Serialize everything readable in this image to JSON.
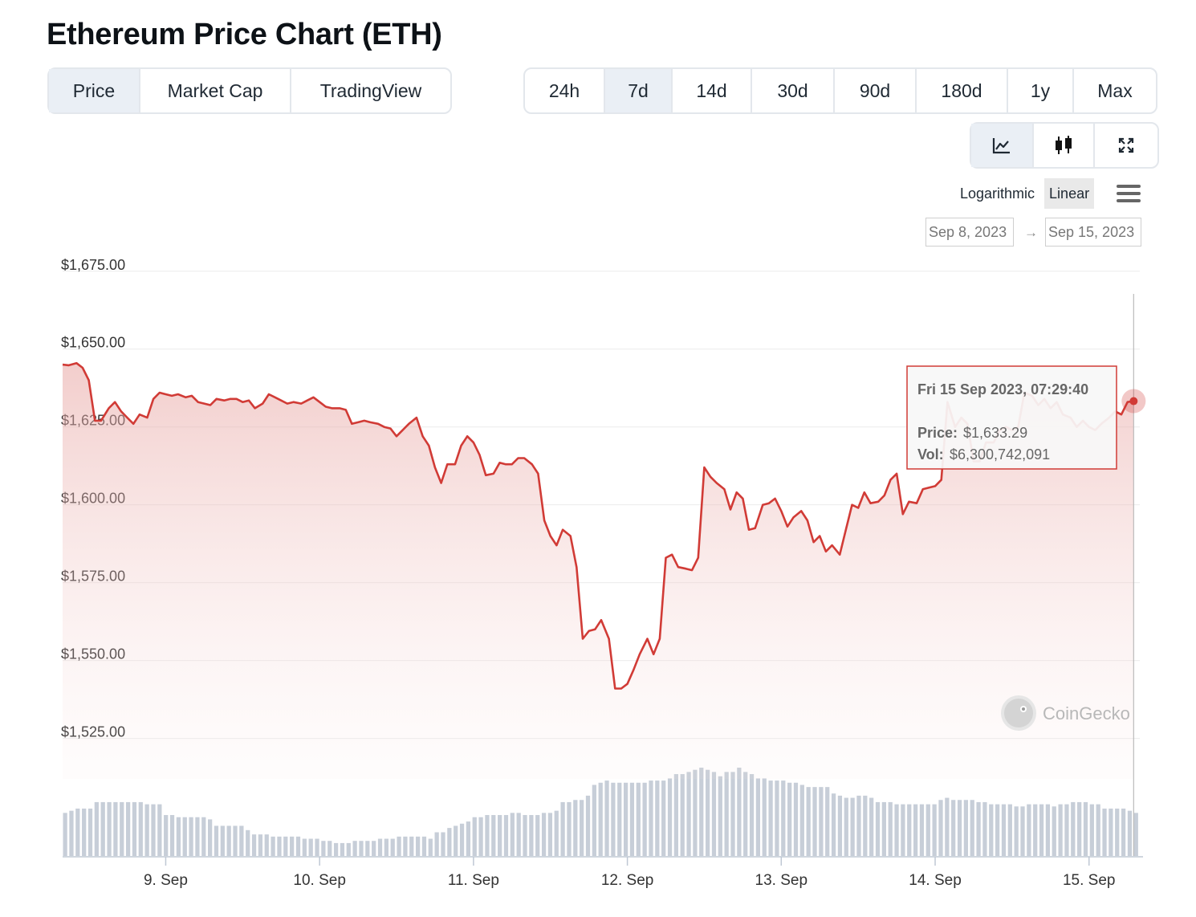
{
  "title": "Ethereum Price Chart (ETH)",
  "view_tabs": [
    {
      "label": "Price",
      "active": true
    },
    {
      "label": "Market Cap",
      "active": false
    },
    {
      "label": "TradingView",
      "active": false
    }
  ],
  "range_tabs": [
    {
      "label": "24h",
      "active": false
    },
    {
      "label": "7d",
      "active": true
    },
    {
      "label": "14d",
      "active": false
    },
    {
      "label": "30d",
      "active": false
    },
    {
      "label": "90d",
      "active": false
    },
    {
      "label": "180d",
      "active": false
    },
    {
      "label": "1y",
      "active": false
    },
    {
      "label": "Max",
      "active": false
    }
  ],
  "chart_type_tabs": [
    {
      "icon": "line-chart-icon",
      "active": true
    },
    {
      "icon": "candlestick-icon",
      "active": false
    },
    {
      "icon": "fullscreen-icon",
      "active": false
    }
  ],
  "scale_options": [
    {
      "label": "Logarithmic",
      "active": false
    },
    {
      "label": "Linear",
      "active": true
    }
  ],
  "date_range": {
    "from": "Sep 8, 2023",
    "arrow": "→",
    "to": "Sep 15, 2023"
  },
  "colors": {
    "line": "#d13b36",
    "volume": "#c7ced8",
    "active_tab": "#eaeff5",
    "border": "#e3e7ec"
  },
  "tooltip": {
    "datetime": "Fri 15 Sep 2023, 07:29:40",
    "price_label": "Price:",
    "price_value": "$1,633.29",
    "vol_label": "Vol:",
    "vol_value": "$6,300,742,091"
  },
  "watermark": "CoinGecko",
  "chart_data": {
    "type": "area",
    "title": "",
    "xlabel": "",
    "ylabel": "",
    "ylim": [
      1512,
      1677
    ],
    "y_ticks": [
      {
        "value": 1525,
        "label": "$1,525.00"
      },
      {
        "value": 1550,
        "label": "$1,550.00"
      },
      {
        "value": 1575,
        "label": "$1,575.00"
      },
      {
        "value": 1600,
        "label": "$1,600.00"
      },
      {
        "value": 1625,
        "label": "$1,625.00"
      },
      {
        "value": 1650,
        "label": "$1,650.00"
      },
      {
        "value": 1675,
        "label": "$1,675.00"
      }
    ],
    "x_range": [
      8.33,
      15.33
    ],
    "x_ticks": [
      {
        "value": 9,
        "label": "9. Sep"
      },
      {
        "value": 10,
        "label": "10. Sep"
      },
      {
        "value": 11,
        "label": "11. Sep"
      },
      {
        "value": 12,
        "label": "12. Sep"
      },
      {
        "value": 13,
        "label": "13. Sep"
      },
      {
        "value": 14,
        "label": "14. Sep"
      },
      {
        "value": 15,
        "label": "15. Sep"
      }
    ],
    "grid": true,
    "price_series": [
      [
        8.33,
        1645
      ],
      [
        8.37,
        1644.8
      ],
      [
        8.42,
        1645.5
      ],
      [
        8.46,
        1644
      ],
      [
        8.5,
        1640
      ],
      [
        8.54,
        1627
      ],
      [
        8.58,
        1627
      ],
      [
        8.63,
        1631
      ],
      [
        8.67,
        1633
      ],
      [
        8.71,
        1630
      ],
      [
        8.75,
        1628
      ],
      [
        8.79,
        1626
      ],
      [
        8.83,
        1629
      ],
      [
        8.88,
        1628
      ],
      [
        8.92,
        1634
      ],
      [
        8.96,
        1636
      ],
      [
        9.0,
        1635.5
      ],
      [
        9.04,
        1635
      ],
      [
        9.08,
        1635.5
      ],
      [
        9.13,
        1634.5
      ],
      [
        9.17,
        1635
      ],
      [
        9.21,
        1633
      ],
      [
        9.25,
        1632.5
      ],
      [
        9.29,
        1632
      ],
      [
        9.33,
        1634
      ],
      [
        9.38,
        1633.5
      ],
      [
        9.42,
        1634
      ],
      [
        9.46,
        1634
      ],
      [
        9.5,
        1633
      ],
      [
        9.54,
        1633.5
      ],
      [
        9.58,
        1631
      ],
      [
        9.63,
        1632.5
      ],
      [
        9.67,
        1635.5
      ],
      [
        9.71,
        1634.5
      ],
      [
        9.75,
        1633.5
      ],
      [
        9.79,
        1632.5
      ],
      [
        9.83,
        1633
      ],
      [
        9.88,
        1632.5
      ],
      [
        9.92,
        1633.5
      ],
      [
        9.96,
        1634.5
      ],
      [
        10.0,
        1633
      ],
      [
        10.04,
        1631.5
      ],
      [
        10.08,
        1631
      ],
      [
        10.13,
        1631
      ],
      [
        10.17,
        1630.5
      ],
      [
        10.21,
        1626
      ],
      [
        10.25,
        1626.5
      ],
      [
        10.29,
        1627
      ],
      [
        10.33,
        1626.5
      ],
      [
        10.38,
        1626
      ],
      [
        10.42,
        1625
      ],
      [
        10.46,
        1624.5
      ],
      [
        10.5,
        1622
      ],
      [
        10.54,
        1624
      ],
      [
        10.58,
        1626
      ],
      [
        10.63,
        1628
      ],
      [
        10.67,
        1622
      ],
      [
        10.71,
        1619
      ],
      [
        10.75,
        1612
      ],
      [
        10.79,
        1607
      ],
      [
        10.83,
        1613
      ],
      [
        10.88,
        1613
      ],
      [
        10.92,
        1619
      ],
      [
        10.96,
        1622
      ],
      [
        11.0,
        1620
      ],
      [
        11.04,
        1616
      ],
      [
        11.08,
        1609.5
      ],
      [
        11.13,
        1610
      ],
      [
        11.17,
        1613.5
      ],
      [
        11.21,
        1613
      ],
      [
        11.25,
        1613
      ],
      [
        11.29,
        1615
      ],
      [
        11.33,
        1615
      ],
      [
        11.38,
        1613
      ],
      [
        11.42,
        1610
      ],
      [
        11.46,
        1595
      ],
      [
        11.5,
        1590
      ],
      [
        11.54,
        1587
      ],
      [
        11.58,
        1592
      ],
      [
        11.63,
        1590
      ],
      [
        11.67,
        1580
      ],
      [
        11.71,
        1557
      ],
      [
        11.75,
        1559.5
      ],
      [
        11.79,
        1560
      ],
      [
        11.83,
        1563
      ],
      [
        11.88,
        1557
      ],
      [
        11.92,
        1541
      ],
      [
        11.96,
        1541
      ],
      [
        12.0,
        1542.5
      ],
      [
        12.04,
        1547
      ],
      [
        12.08,
        1552
      ],
      [
        12.13,
        1557
      ],
      [
        12.17,
        1552
      ],
      [
        12.21,
        1557
      ],
      [
        12.25,
        1583
      ],
      [
        12.29,
        1584
      ],
      [
        12.33,
        1580
      ],
      [
        12.38,
        1579.5
      ],
      [
        12.42,
        1579
      ],
      [
        12.46,
        1583
      ],
      [
        12.5,
        1612
      ],
      [
        12.54,
        1609
      ],
      [
        12.58,
        1607
      ],
      [
        12.63,
        1605
      ],
      [
        12.67,
        1598.5
      ],
      [
        12.71,
        1604
      ],
      [
        12.75,
        1602
      ],
      [
        12.79,
        1592
      ],
      [
        12.83,
        1592.5
      ],
      [
        12.88,
        1600
      ],
      [
        12.92,
        1600.5
      ],
      [
        12.96,
        1602
      ],
      [
        13.0,
        1598
      ],
      [
        13.04,
        1593
      ],
      [
        13.08,
        1596
      ],
      [
        13.13,
        1598
      ],
      [
        13.17,
        1595
      ],
      [
        13.21,
        1588
      ],
      [
        13.25,
        1590
      ],
      [
        13.29,
        1585
      ],
      [
        13.33,
        1587
      ],
      [
        13.38,
        1584
      ],
      [
        13.42,
        1592
      ],
      [
        13.46,
        1600
      ],
      [
        13.5,
        1599
      ],
      [
        13.54,
        1604
      ],
      [
        13.58,
        1600.5
      ],
      [
        13.63,
        1601
      ],
      [
        13.67,
        1603
      ],
      [
        13.71,
        1608
      ],
      [
        13.75,
        1610
      ],
      [
        13.79,
        1597
      ],
      [
        13.83,
        1601
      ],
      [
        13.88,
        1600.5
      ],
      [
        13.92,
        1605
      ],
      [
        13.96,
        1605.5
      ],
      [
        14.0,
        1606
      ],
      [
        14.04,
        1608
      ],
      [
        14.08,
        1633
      ],
      [
        14.13,
        1625
      ],
      [
        14.17,
        1628
      ],
      [
        14.21,
        1626
      ],
      [
        14.25,
        1614
      ],
      [
        14.29,
        1614
      ],
      [
        14.33,
        1620
      ],
      [
        14.38,
        1620
      ],
      [
        14.42,
        1624
      ],
      [
        14.46,
        1625
      ],
      [
        14.5,
        1624
      ],
      [
        14.54,
        1625
      ],
      [
        14.58,
        1636
      ],
      [
        14.63,
        1635
      ],
      [
        14.67,
        1632
      ],
      [
        14.71,
        1634
      ],
      [
        14.75,
        1631
      ],
      [
        14.79,
        1633
      ],
      [
        14.83,
        1629
      ],
      [
        14.88,
        1628
      ],
      [
        14.92,
        1625
      ],
      [
        14.96,
        1627
      ],
      [
        15.0,
        1625
      ],
      [
        15.04,
        1624
      ],
      [
        15.08,
        1626
      ],
      [
        15.13,
        1628
      ],
      [
        15.17,
        1630
      ],
      [
        15.21,
        1629
      ],
      [
        15.25,
        1633
      ],
      [
        15.29,
        1633.29
      ]
    ],
    "volume_series": [
      20,
      21,
      22,
      22,
      22,
      25,
      25,
      25,
      25,
      25,
      25,
      25,
      25,
      24,
      24,
      24,
      19,
      19,
      18,
      18,
      18,
      18,
      18,
      17,
      14,
      14,
      14,
      14,
      14,
      12,
      10,
      10,
      10,
      9,
      9,
      9,
      9,
      9,
      8,
      8,
      8,
      7,
      7,
      6,
      6,
      6,
      7,
      7,
      7,
      7,
      8,
      8,
      8,
      9,
      9,
      9,
      9,
      9,
      8,
      11,
      11,
      13,
      14,
      15,
      16,
      18,
      18,
      19,
      19,
      19,
      19,
      20,
      20,
      19,
      19,
      19,
      20,
      20,
      21,
      25,
      25,
      26,
      26,
      28,
      33,
      34,
      35,
      34,
      34,
      34,
      34,
      34,
      34,
      35,
      35,
      35,
      36,
      38,
      38,
      39,
      40,
      41,
      40,
      39,
      37,
      39,
      39,
      41,
      39,
      38,
      36,
      36,
      35,
      35,
      35,
      34,
      34,
      33,
      32,
      32,
      32,
      32,
      29,
      28,
      27,
      27,
      28,
      28,
      27,
      25,
      25,
      25,
      24,
      24,
      24,
      24,
      24,
      24,
      24,
      26,
      27,
      26,
      26,
      26,
      26,
      25,
      25,
      24,
      24,
      24,
      24,
      23,
      23,
      24,
      24,
      24,
      24,
      23,
      24,
      24,
      25,
      25,
      25,
      24,
      24,
      22,
      22,
      22,
      22,
      21,
      20
    ],
    "hover_point": {
      "x": 15.29,
      "y": 1633.29
    }
  }
}
